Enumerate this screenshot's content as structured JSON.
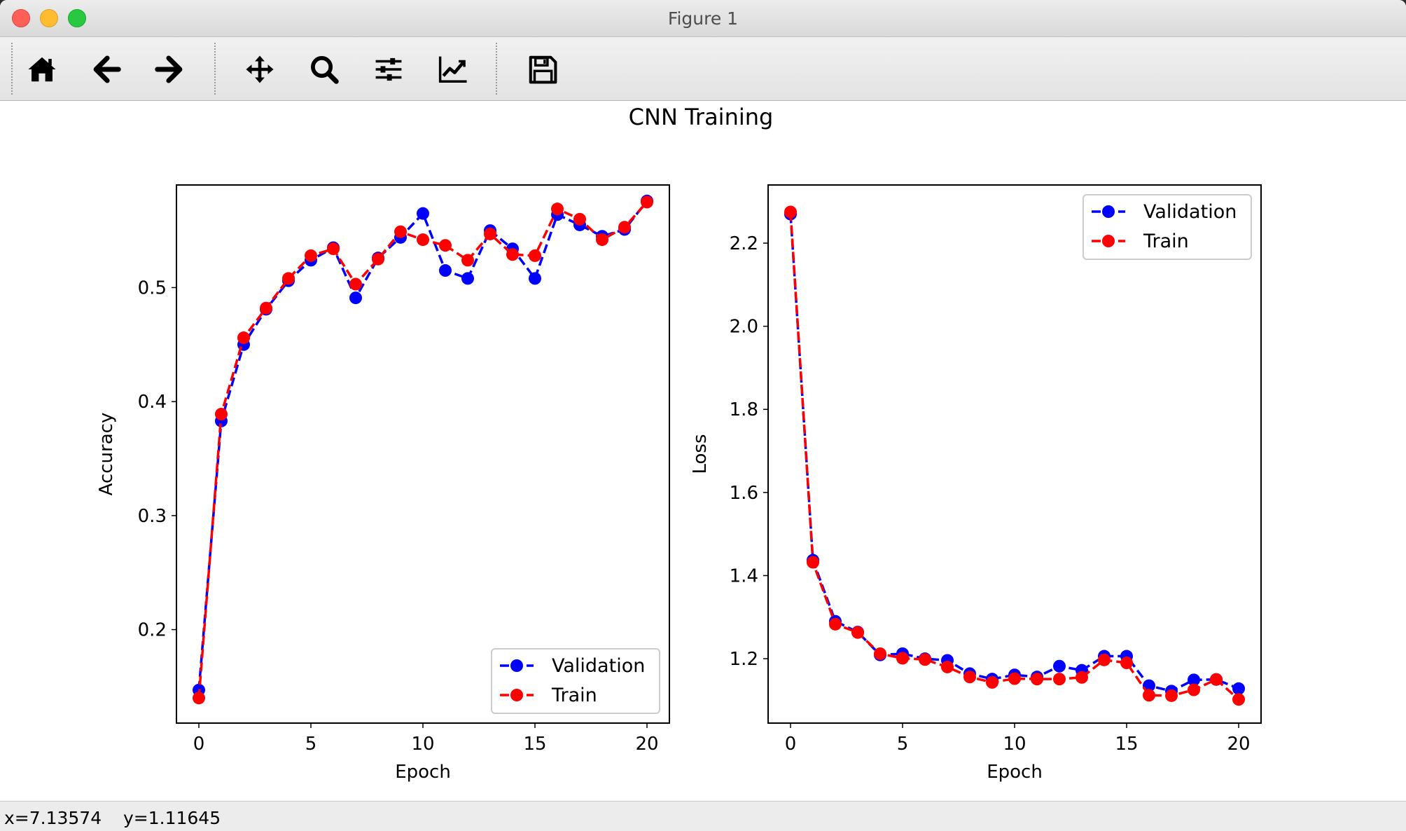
{
  "window": {
    "title": "Figure 1"
  },
  "toolbar": {
    "buttons": [
      {
        "name": "home-icon"
      },
      {
        "name": "back-arrow-icon"
      },
      {
        "name": "forward-arrow-icon"
      },
      {
        "name": "pan-icon"
      },
      {
        "name": "zoom-icon"
      },
      {
        "name": "subplots-icon"
      },
      {
        "name": "edit-axes-icon"
      },
      {
        "name": "save-icon"
      }
    ]
  },
  "status": {
    "x": "x=7.13574",
    "y": "y=1.11645"
  },
  "colors": {
    "validation": "#0000ff",
    "train": "#ff0000"
  },
  "chart_data": [
    {
      "type": "line",
      "title": "CNN Training",
      "xlabel": "Epoch",
      "ylabel": "Accuracy",
      "xlim": [
        -1,
        21
      ],
      "ylim": [
        0.118,
        0.59
      ],
      "xticks": [
        0,
        5,
        10,
        15,
        20
      ],
      "yticks": [
        0.2,
        0.3,
        0.4,
        0.5
      ],
      "legend": "lower-right",
      "x": [
        0,
        1,
        2,
        3,
        4,
        5,
        6,
        7,
        8,
        9,
        10,
        11,
        12,
        13,
        14,
        15,
        16,
        17,
        18,
        19,
        20
      ],
      "series": [
        {
          "name": "Validation",
          "color": "#0000ff",
          "values": [
            0.147,
            0.383,
            0.45,
            0.481,
            0.506,
            0.524,
            0.535,
            0.491,
            0.526,
            0.544,
            0.565,
            0.515,
            0.508,
            0.55,
            0.534,
            0.508,
            0.564,
            0.555,
            0.545,
            0.551,
            0.576
          ]
        },
        {
          "name": "Train",
          "color": "#ff0000",
          "values": [
            0.14,
            0.389,
            0.456,
            0.482,
            0.508,
            0.528,
            0.534,
            0.503,
            0.525,
            0.549,
            0.542,
            0.537,
            0.524,
            0.547,
            0.529,
            0.528,
            0.569,
            0.56,
            0.542,
            0.553,
            0.575
          ]
        }
      ]
    },
    {
      "type": "line",
      "xlabel": "Epoch",
      "ylabel": "Loss",
      "xlim": [
        -1,
        21
      ],
      "ylim": [
        1.045,
        2.34
      ],
      "xticks": [
        0,
        5,
        10,
        15,
        20
      ],
      "yticks": [
        1.2,
        1.4,
        1.6,
        1.8,
        2.0,
        2.2
      ],
      "legend": "upper-right",
      "x": [
        0,
        1,
        2,
        3,
        4,
        5,
        6,
        7,
        8,
        9,
        10,
        11,
        12,
        13,
        14,
        15,
        16,
        17,
        18,
        19,
        20
      ],
      "series": [
        {
          "name": "Validation",
          "color": "#0000ff",
          "values": [
            2.27,
            1.437,
            1.29,
            1.264,
            1.209,
            1.212,
            1.2,
            1.196,
            1.164,
            1.151,
            1.161,
            1.156,
            1.182,
            1.172,
            1.206,
            1.206,
            1.135,
            1.122,
            1.149,
            1.15,
            1.128
          ]
        },
        {
          "name": "Train",
          "color": "#ff0000",
          "values": [
            2.275,
            1.432,
            1.283,
            1.263,
            1.212,
            1.201,
            1.198,
            1.18,
            1.156,
            1.143,
            1.152,
            1.151,
            1.151,
            1.155,
            1.197,
            1.19,
            1.112,
            1.111,
            1.125,
            1.15,
            1.102
          ]
        }
      ]
    }
  ]
}
